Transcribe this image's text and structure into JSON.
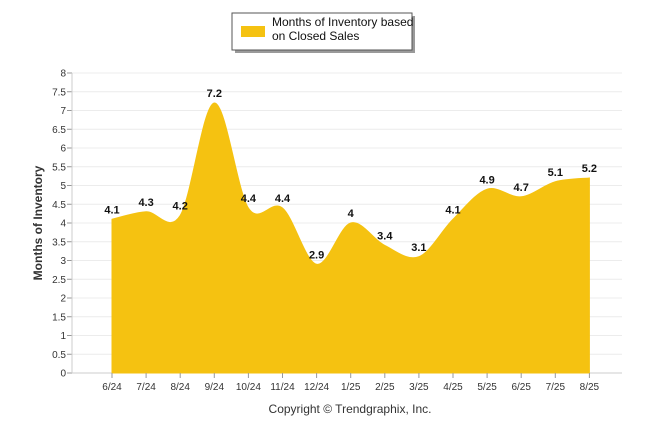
{
  "chart_data": {
    "type": "area",
    "categories": [
      "6/24",
      "7/24",
      "8/24",
      "9/24",
      "10/24",
      "11/24",
      "12/24",
      "1/25",
      "2/25",
      "3/25",
      "4/25",
      "5/25",
      "6/25",
      "7/25",
      "8/25"
    ],
    "series": [
      {
        "name": "Months of Inventory based on Closed Sales",
        "values": [
          4.1,
          4.3,
          4.2,
          7.2,
          4.4,
          4.4,
          2.9,
          4,
          3.4,
          3.1,
          4.1,
          4.9,
          4.7,
          5.1,
          5.2
        ],
        "color": "#F5C211"
      }
    ],
    "data_labels": [
      "4.1",
      "4.3",
      "4.2",
      "7.2",
      "4.4",
      "4.4",
      "2.9",
      "4",
      "3.4",
      "3.1",
      "4.1",
      "4.9",
      "4.7",
      "5.1",
      "5.2"
    ],
    "ylabel": "Months of Inventory",
    "xlabel": "",
    "ylim": [
      0,
      8
    ],
    "yticks": [
      "0",
      "0.5",
      "1",
      "1.5",
      "2",
      "2.5",
      "3",
      "3.5",
      "4",
      "4.5",
      "5",
      "5.5",
      "6",
      "6.5",
      "7",
      "7.5",
      "8"
    ],
    "grid": true,
    "legend_position": "top-center"
  },
  "legend": {
    "line1": "Months of Inventory based",
    "line2": "on Closed Sales"
  },
  "footer": {
    "copyright": "Copyright © Trendgraphix, Inc."
  }
}
